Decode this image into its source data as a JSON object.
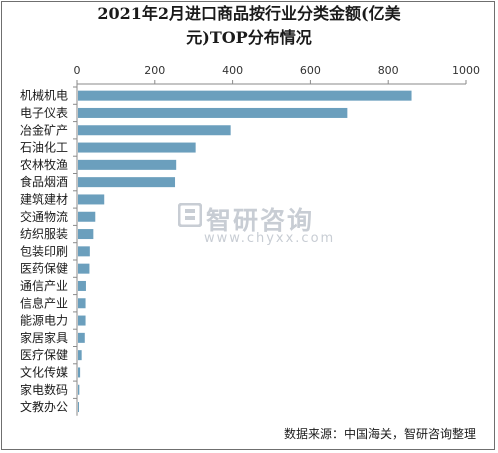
{
  "chart_data": {
    "type": "bar",
    "orientation": "horizontal",
    "title": "2021年2月进口商品按行业分类金额(亿美元)TOP分布情况",
    "title_lines": [
      "2021年2月进口商品按行业分类金额(亿美",
      "元)TOP分布情况"
    ],
    "categories": [
      "机械机电",
      "电子仪表",
      "冶金矿产",
      "石油化工",
      "农林牧渔",
      "食品烟酒",
      "建筑建材",
      "交通物流",
      "纺织服装",
      "包装印刷",
      "医药保健",
      "通信产业",
      "信息产业",
      "能源电力",
      "家居家具",
      "医疗保健",
      "文化传媒",
      "家电数码",
      "文教办公"
    ],
    "values": [
      860,
      695,
      395,
      305,
      255,
      252,
      70,
      47,
      42,
      33,
      32,
      23,
      22,
      22,
      20,
      12,
      8,
      6,
      4
    ],
    "xlim": [
      0,
      1000
    ],
    "xticks": [
      0,
      200,
      400,
      600,
      800,
      1000
    ],
    "xaxis_position": "top",
    "grid": false,
    "bar_color": "#6b9fbd"
  },
  "watermark": {
    "text": "智研咨询",
    "url": "www.chyxx.com"
  },
  "source": "数据来源：中国海关，智研咨询整理"
}
